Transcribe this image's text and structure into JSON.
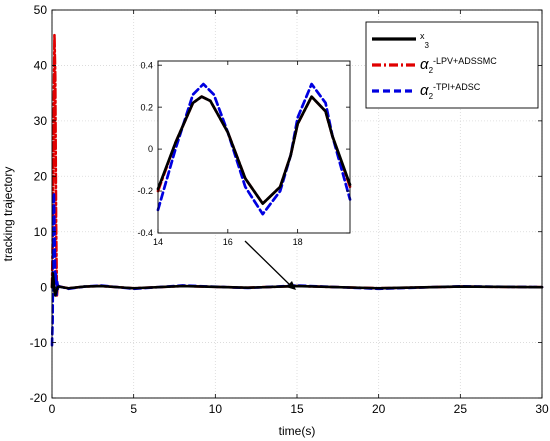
{
  "chart_data": [
    {
      "type": "line",
      "xlabel": "time(s)",
      "ylabel": "tracking trajectory",
      "xlim": [
        0,
        30
      ],
      "ylim": [
        -20,
        50
      ],
      "xticks": [
        0,
        5,
        10,
        15,
        20,
        25,
        30
      ],
      "yticks": [
        -20,
        -10,
        0,
        10,
        20,
        30,
        40,
        50
      ],
      "grid": true,
      "legend_position": "top-right",
      "series": [
        {
          "name": "x3",
          "color": "#000000",
          "style": "solid",
          "x": [
            0,
            0.05,
            0.1,
            0.15,
            0.2,
            0.25,
            0.3,
            0.35,
            0.4,
            0.5,
            1.0,
            2.0,
            3.0,
            5.0,
            8.0,
            12.0,
            15.0,
            20.0,
            25.0,
            30.0
          ],
          "y": [
            0,
            2.5,
            1.2,
            -0.8,
            -1.5,
            -1.0,
            -0.4,
            0.0,
            0.1,
            0.05,
            -0.2,
            0.1,
            0.2,
            -0.2,
            0.2,
            -0.1,
            0.2,
            -0.2,
            0.1,
            0.0
          ]
        },
        {
          "name": "α2-LPV+ADSSMC",
          "color": "#e00000",
          "style": "dash-dot",
          "x": [
            0,
            0.05,
            0.1,
            0.15,
            0.2,
            0.25,
            0.3,
            0.35,
            0.4,
            0.5,
            1.0,
            2.0,
            3.0,
            5.0,
            8.0,
            12.0,
            15.0,
            20.0,
            25.0,
            30.0
          ],
          "y": [
            0,
            10,
            30,
            45.5,
            38,
            12,
            -1.5,
            0.5,
            0.0,
            0.1,
            -0.2,
            0.1,
            0.2,
            -0.2,
            0.2,
            -0.1,
            0.2,
            -0.2,
            0.1,
            0.0
          ]
        },
        {
          "name": "α2-TPI+ADSC",
          "color": "#0000e0",
          "style": "dashed",
          "x": [
            0,
            0.04,
            0.08,
            0.12,
            0.16,
            0.2,
            0.24,
            0.28,
            0.32,
            0.36,
            0.4,
            0.5,
            1.0,
            2.0,
            3.0,
            5.0,
            8.0,
            12.0,
            15.0,
            20.0,
            25.0,
            30.0
          ],
          "y": [
            -10.5,
            -6,
            14,
            17,
            9,
            1,
            2.5,
            -1.5,
            1.0,
            -0.5,
            0.2,
            0.1,
            -0.3,
            0.1,
            0.3,
            -0.3,
            0.3,
            -0.15,
            0.3,
            -0.3,
            0.15,
            0.0
          ]
        }
      ]
    },
    {
      "type": "line",
      "xlim": [
        14,
        19.5
      ],
      "ylim": [
        -0.4,
        0.42
      ],
      "xticks": [
        14,
        16,
        18
      ],
      "yticks": [
        -0.4,
        -0.2,
        0,
        0.2,
        0.4
      ],
      "grid": false,
      "series": [
        {
          "name": "x3",
          "color": "#000000",
          "x": [
            14.0,
            14.5,
            15.0,
            15.25,
            15.5,
            16.0,
            16.5,
            17.0,
            17.5,
            17.8,
            18.0,
            18.4,
            18.8,
            19.0,
            19.5
          ],
          "y": [
            -0.19,
            0.03,
            0.22,
            0.25,
            0.23,
            0.08,
            -0.14,
            -0.26,
            -0.18,
            -0.03,
            0.12,
            0.25,
            0.18,
            0.06,
            -0.17
          ]
        },
        {
          "name": "α2-LPV+ADSSMC",
          "color": "#e00000",
          "x": [
            14.0,
            14.5,
            15.0,
            15.25,
            15.5,
            16.0,
            16.5,
            17.0,
            17.5,
            17.8,
            18.0,
            18.4,
            18.8,
            19.0,
            19.5
          ],
          "y": [
            -0.2,
            0.03,
            0.22,
            0.25,
            0.23,
            0.08,
            -0.14,
            -0.26,
            -0.18,
            -0.03,
            0.12,
            0.25,
            0.18,
            0.06,
            -0.18
          ]
        },
        {
          "name": "α2-TPI+ADSC",
          "color": "#0000e0",
          "x": [
            14.0,
            14.5,
            15.0,
            15.3,
            15.6,
            16.0,
            16.5,
            17.0,
            17.5,
            17.8,
            18.0,
            18.4,
            18.8,
            19.0,
            19.5
          ],
          "y": [
            -0.29,
            0.0,
            0.26,
            0.31,
            0.26,
            0.08,
            -0.18,
            -0.31,
            -0.2,
            -0.03,
            0.15,
            0.31,
            0.22,
            0.06,
            -0.24
          ]
        }
      ]
    }
  ],
  "legend": [
    {
      "main": "x",
      "sub": "3",
      "post": ""
    },
    {
      "main": "α",
      "sub": "2",
      "post": "-LPV+ADSSMC"
    },
    {
      "main": "α",
      "sub": "2",
      "post": "-TPI+ADSC"
    }
  ]
}
